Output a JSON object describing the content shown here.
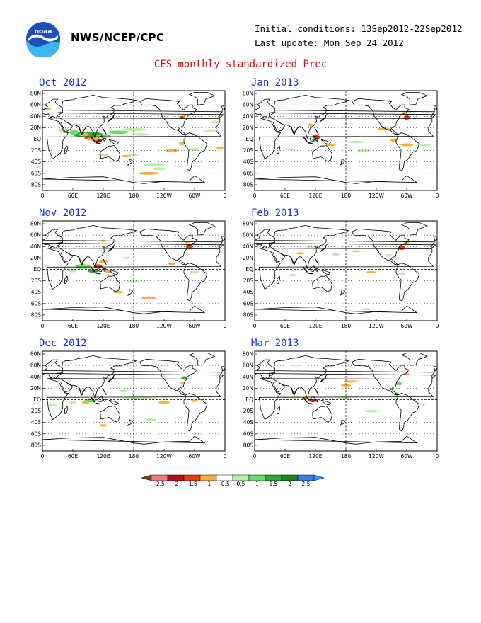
{
  "header": {
    "org": "NWS/NCEP/CPC",
    "logo_text": "noaa",
    "initial_conditions": "Initial conditions: 13Sep2012-22Sep2012",
    "last_update": "Last update: Mon Sep 24 2012",
    "title": "CFS monthly standardized Prec"
  },
  "axes": {
    "lat_labels": [
      "80N",
      "60N",
      "40N",
      "20N",
      "EQ",
      "20S",
      "40S",
      "60S",
      "80S"
    ],
    "lon_labels": [
      "0",
      "60E",
      "120E",
      "180",
      "120W",
      "60W",
      "0"
    ]
  },
  "panels": [
    {
      "id": "oct2012",
      "title": "Oct 2012"
    },
    {
      "id": "jan2013",
      "title": "Jan 2013"
    },
    {
      "id": "nov2012",
      "title": "Nov 2012"
    },
    {
      "id": "feb2013",
      "title": "Feb 2013"
    },
    {
      "id": "dec2012",
      "title": "Dec 2012"
    },
    {
      "id": "mar2013",
      "title": "Mar 2013"
    }
  ],
  "colorbar": {
    "labels": [
      "-2.5",
      "-2",
      "-1.5",
      "-1",
      "-0.5",
      "0.5",
      "1",
      "1.5",
      "2",
      "2.5"
    ],
    "colors": [
      "#6e3b23",
      "#e88080",
      "#b01010",
      "#ee3a10",
      "#f5b040",
      "#ffffff",
      "#b8f0a8",
      "#66dd66",
      "#2ea82e",
      "#1f7f1f",
      "#3a7fe0",
      "#3399ff"
    ]
  },
  "anomaly_colors": {
    "dry_light": "#f5b040",
    "dry_strong": "#ee3a10",
    "dry_extreme": "#b01010",
    "wet_light": "#b8f0a8",
    "wet_med": "#66dd66",
    "wet_strong": "#2ea82e"
  }
}
